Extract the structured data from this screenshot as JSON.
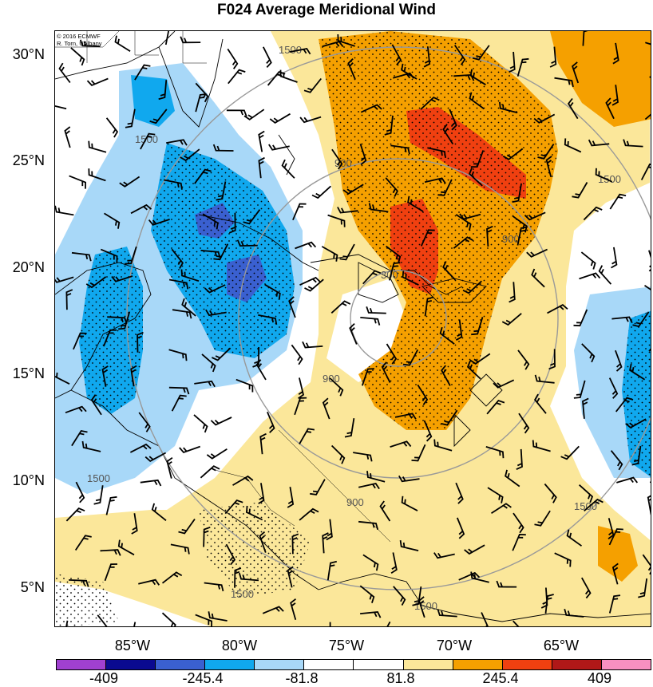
{
  "title": "F024 Average Meridional Wind",
  "credit": [
    "© 2016 ECMWF",
    "R. Torn, UAlbany"
  ],
  "lat_labels": [
    "30°N",
    "25°N",
    "20°N",
    "15°N",
    "10°N",
    "5°N"
  ],
  "lon_labels": [
    "85°W",
    "80°W",
    "75°W",
    "70°W",
    "65°W"
  ],
  "contour_labels": [
    "300",
    "900",
    "1500"
  ],
  "colorbar": {
    "colors": [
      "#a040d0",
      "#0a0a90",
      "#3a60d0",
      "#10a8ee",
      "#a8d8f8",
      "#ffffff",
      "#ffffff",
      "#fbe79a",
      "#f5a000",
      "#f04010",
      "#b01818",
      "#f890c0"
    ],
    "labels": [
      "-409",
      "-245.4",
      "-81.8",
      "81.8",
      "245.4",
      "409"
    ]
  },
  "fill_colors": {
    "light_blue": "#a8d8f8",
    "blue": "#10a8ee",
    "dark_blue": "#3a60d0",
    "light_yellow": "#fbe79a",
    "orange": "#f5a000",
    "red_orange": "#f04010",
    "dark_red": "#b01818"
  }
}
